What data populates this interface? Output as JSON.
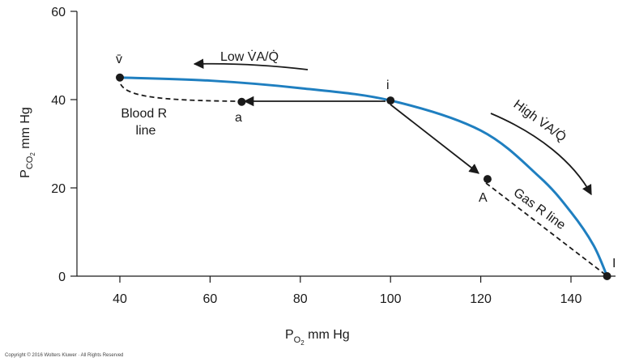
{
  "chart_data": {
    "type": "line",
    "xlabel": "PO2 mm Hg",
    "ylabel": "PCO2 mm Hg",
    "xlim": [
      31,
      150
    ],
    "ylim": [
      0,
      60
    ],
    "x_ticks": [
      40,
      60,
      80,
      100,
      120,
      140
    ],
    "y_ticks": [
      0,
      20,
      40,
      60
    ],
    "grid": false,
    "colors": {
      "curve": "#1f7fc0",
      "ink": "#1a1a1a"
    },
    "series": [
      {
        "values": [
          {
            "x": 40,
            "y": 45
          },
          {
            "x": 60,
            "y": 44.3
          },
          {
            "x": 80,
            "y": 42.6
          },
          {
            "x": 100,
            "y": 39.8
          },
          {
            "x": 120,
            "y": 33
          },
          {
            "x": 133,
            "y": 22.5
          },
          {
            "x": 140,
            "y": 14.5
          },
          {
            "x": 145,
            "y": 7
          },
          {
            "x": 148,
            "y": 0
          }
        ]
      }
    ],
    "points": [
      {
        "label": "v̄",
        "x": 40,
        "y": 45
      },
      {
        "label": "a",
        "x": 67,
        "y": 39.5
      },
      {
        "label": "i",
        "x": 100,
        "y": 39.8
      },
      {
        "label": "A",
        "x": 121.5,
        "y": 22
      },
      {
        "label": "I",
        "x": 148,
        "y": 0
      }
    ],
    "lines": {
      "blood_r_line": [
        "Blood R",
        "line"
      ],
      "gas_r_line": "Gas R line"
    },
    "annotations": {
      "low_ratio": "Low V̇A/Q̇",
      "high_ratio": "High V̇A/Q̇"
    }
  },
  "copyright": "Copyright © 2016 Wolters Kluwer · All Rights Reserved"
}
